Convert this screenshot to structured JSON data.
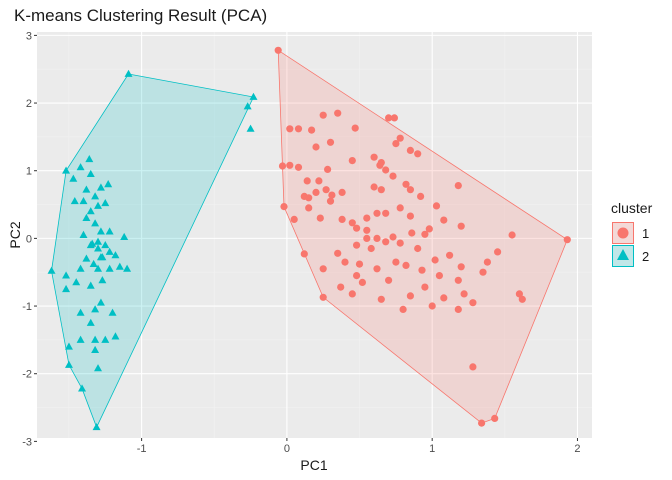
{
  "chart_data": {
    "type": "scatter",
    "title": "K-means Clustering Result (PCA)",
    "xlabel": "PC1",
    "ylabel": "PC2",
    "xlim": [
      -1.72,
      2.1
    ],
    "ylim": [
      -2.95,
      3.05
    ],
    "x_ticks": [
      -1,
      0,
      1,
      2
    ],
    "y_ticks": [
      -3,
      -2,
      -1,
      0,
      1,
      2,
      3
    ],
    "grid": true,
    "legend": {
      "title": "cluster",
      "position": "right"
    },
    "colors": {
      "1": "#F8766D",
      "2": "#00BFC4"
    },
    "series": [
      {
        "name": "1",
        "shape": "circle",
        "hull": [
          [
            -0.06,
            2.78
          ],
          [
            1.93,
            -0.02
          ],
          [
            1.43,
            -2.66
          ],
          [
            1.34,
            -2.73
          ],
          [
            0.25,
            -0.87
          ],
          [
            -0.02,
            0.47
          ],
          [
            -0.03,
            1.07
          ]
        ],
        "points": [
          [
            -0.06,
            2.78
          ],
          [
            1.93,
            -0.02
          ],
          [
            1.43,
            -2.66
          ],
          [
            1.34,
            -2.73
          ],
          [
            0.25,
            -0.87
          ],
          [
            -0.02,
            0.47
          ],
          [
            -0.03,
            1.07
          ],
          [
            0.02,
            1.62
          ],
          [
            0.08,
            1.62
          ],
          [
            0.17,
            1.6
          ],
          [
            0.35,
            1.85
          ],
          [
            0.25,
            1.82
          ],
          [
            0.47,
            1.63
          ],
          [
            0.7,
            1.78
          ],
          [
            0.74,
            1.78
          ],
          [
            0.2,
            1.35
          ],
          [
            0.3,
            1.42
          ],
          [
            0.08,
            1.05
          ],
          [
            0.02,
            1.08
          ],
          [
            0.28,
            1.02
          ],
          [
            0.22,
            0.85
          ],
          [
            0.14,
            0.85
          ],
          [
            0.2,
            0.68
          ],
          [
            0.27,
            0.72
          ],
          [
            0.38,
            0.68
          ],
          [
            0.31,
            0.64
          ],
          [
            0.12,
            0.62
          ],
          [
            0.15,
            0.6
          ],
          [
            0.3,
            0.55
          ],
          [
            0.05,
            0.28
          ],
          [
            0.15,
            0.45
          ],
          [
            0.23,
            0.3
          ],
          [
            0.38,
            0.28
          ],
          [
            0.45,
            0.23
          ],
          [
            0.48,
            0.15
          ],
          [
            0.55,
            0.12
          ],
          [
            0.62,
            0.37
          ],
          [
            0.45,
            1.15
          ],
          [
            0.6,
            1.2
          ],
          [
            0.65,
            1.12
          ],
          [
            0.78,
            1.48
          ],
          [
            0.75,
            1.4
          ],
          [
            0.85,
            1.3
          ],
          [
            0.9,
            1.25
          ],
          [
            0.68,
            1.01
          ],
          [
            0.64,
            1.08
          ],
          [
            0.73,
            0.92
          ],
          [
            0.82,
            0.8
          ],
          [
            0.6,
            0.76
          ],
          [
            0.65,
            0.72
          ],
          [
            0.85,
            0.72
          ],
          [
            0.92,
            0.62
          ],
          [
            0.78,
            0.45
          ],
          [
            0.68,
            0.37
          ],
          [
            0.55,
            0.3
          ],
          [
            1.18,
            0.78
          ],
          [
            1.03,
            0.48
          ],
          [
            1.08,
            0.27
          ],
          [
            0.98,
            0.14
          ],
          [
            0.95,
            0.06
          ],
          [
            1.2,
            0.18
          ],
          [
            0.85,
            0.33
          ],
          [
            0.62,
            0.0
          ],
          [
            0.73,
            0.02
          ],
          [
            0.78,
            -0.07
          ],
          [
            0.86,
            0.08
          ],
          [
            0.68,
            -0.05
          ],
          [
            0.58,
            -0.15
          ],
          [
            0.55,
            0.0
          ],
          [
            0.48,
            -0.1
          ],
          [
            0.35,
            -0.22
          ],
          [
            0.12,
            -0.23
          ],
          [
            0.25,
            -0.45
          ],
          [
            0.4,
            -0.35
          ],
          [
            0.5,
            -0.38
          ],
          [
            0.48,
            -0.55
          ],
          [
            0.62,
            -0.45
          ],
          [
            0.75,
            -0.35
          ],
          [
            0.82,
            -0.4
          ],
          [
            0.93,
            -0.47
          ],
          [
            1.05,
            -0.55
          ],
          [
            0.95,
            -0.72
          ],
          [
            0.85,
            -0.85
          ],
          [
            0.7,
            -0.62
          ],
          [
            0.52,
            -0.65
          ],
          [
            0.37,
            -0.72
          ],
          [
            0.45,
            -0.82
          ],
          [
            0.65,
            -0.9
          ],
          [
            0.8,
            -1.05
          ],
          [
            1.0,
            -1.0
          ],
          [
            1.08,
            -0.88
          ],
          [
            1.18,
            -0.62
          ],
          [
            1.22,
            -0.82
          ],
          [
            1.28,
            -0.95
          ],
          [
            1.18,
            -1.05
          ],
          [
            1.35,
            -0.5
          ],
          [
            1.45,
            -0.2
          ],
          [
            1.38,
            -0.35
          ],
          [
            1.55,
            0.05
          ],
          [
            1.12,
            -0.25
          ],
          [
            1.2,
            -0.42
          ],
          [
            1.6,
            -0.82
          ],
          [
            1.62,
            -0.9
          ],
          [
            1.28,
            -1.9
          ],
          [
            1.02,
            -0.32
          ],
          [
            0.9,
            -0.15
          ]
        ]
      },
      {
        "name": "2",
        "shape": "triangle",
        "hull": [
          [
            -1.09,
            2.43
          ],
          [
            -0.23,
            2.09
          ],
          [
            -1.31,
            -2.79
          ],
          [
            -1.41,
            -2.22
          ],
          [
            -1.5,
            -1.87
          ],
          [
            -1.62,
            -0.48
          ],
          [
            -1.52,
            1.0
          ]
        ],
        "points": [
          [
            -1.09,
            2.43
          ],
          [
            -0.23,
            2.09
          ],
          [
            -0.27,
            1.95
          ],
          [
            -0.25,
            1.62
          ],
          [
            -1.31,
            -2.79
          ],
          [
            -1.41,
            -2.22
          ],
          [
            -1.5,
            -1.87
          ],
          [
            -1.62,
            -0.48
          ],
          [
            -1.52,
            1.0
          ],
          [
            -1.36,
            1.17
          ],
          [
            -1.42,
            1.05
          ],
          [
            -1.47,
            0.88
          ],
          [
            -1.35,
            0.95
          ],
          [
            -1.28,
            0.75
          ],
          [
            -1.38,
            0.72
          ],
          [
            -1.23,
            0.8
          ],
          [
            -1.32,
            0.62
          ],
          [
            -1.25,
            0.52
          ],
          [
            -1.3,
            0.48
          ],
          [
            -1.4,
            0.55
          ],
          [
            -1.46,
            0.55
          ],
          [
            -1.35,
            0.4
          ],
          [
            -1.38,
            0.3
          ],
          [
            -1.32,
            0.22
          ],
          [
            -1.4,
            0.05
          ],
          [
            -1.3,
            -0.05
          ],
          [
            -1.25,
            -0.1
          ],
          [
            -1.22,
            -0.2
          ],
          [
            -1.3,
            -0.15
          ],
          [
            -1.34,
            -0.08
          ],
          [
            -1.28,
            -0.28
          ],
          [
            -1.38,
            -0.3
          ],
          [
            -1.42,
            -0.45
          ],
          [
            -1.3,
            -0.45
          ],
          [
            -1.22,
            -0.45
          ],
          [
            -1.15,
            -0.42
          ],
          [
            -1.1,
            -0.45
          ],
          [
            -1.18,
            -0.25
          ],
          [
            -1.27,
            -0.62
          ],
          [
            -1.35,
            -0.7
          ],
          [
            -1.45,
            -0.65
          ],
          [
            -1.52,
            -0.55
          ],
          [
            -1.52,
            -0.75
          ],
          [
            -1.28,
            -0.95
          ],
          [
            -1.32,
            -1.05
          ],
          [
            -1.2,
            -1.1
          ],
          [
            -1.42,
            -1.1
          ],
          [
            -1.35,
            -1.25
          ],
          [
            -1.25,
            -1.5
          ],
          [
            -1.18,
            -1.45
          ],
          [
            -1.32,
            -1.5
          ],
          [
            -1.32,
            -1.65
          ],
          [
            -1.42,
            -1.5
          ],
          [
            -1.5,
            -1.6
          ],
          [
            -1.3,
            -1.92
          ],
          [
            -1.28,
            0.1
          ],
          [
            -1.35,
            -0.1
          ],
          [
            -1.12,
            0.02
          ],
          [
            -1.22,
            0.1
          ],
          [
            -1.33,
            -0.38
          ],
          [
            -1.27,
            -0.28
          ]
        ]
      }
    ]
  }
}
